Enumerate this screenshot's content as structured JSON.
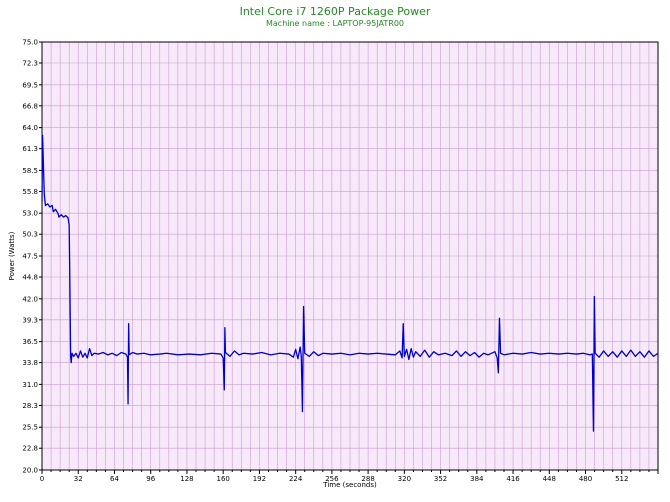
{
  "chart_data": {
    "type": "line",
    "title": "Intel Core i7 1260P Package Power",
    "subtitle": "Machine name : LAPTOP-95JATR00",
    "xlabel": "Time (seconds)",
    "ylabel": "Power (Watts)",
    "xlim": [
      0,
      544
    ],
    "ylim": [
      20.0,
      75.0
    ],
    "x_ticks": [
      "0",
      "32",
      "64",
      "96",
      "128",
      "160",
      "192",
      "224",
      "256",
      "288",
      "320",
      "352",
      "384",
      "416",
      "448",
      "480",
      "512"
    ],
    "y_ticks": [
      "20.0",
      "22.8",
      "25.5",
      "28.3",
      "31.0",
      "33.8",
      "36.5",
      "39.3",
      "42.0",
      "44.8",
      "47.5",
      "50.3",
      "53.0",
      "55.8",
      "58.5",
      "61.3",
      "64.0",
      "66.8",
      "69.5",
      "72.3",
      "75.0"
    ],
    "grid": true,
    "background_color": "#F7E8FA",
    "grid_color": "#C9A0D0",
    "line_color": "#0000CC",
    "title_color": "#228B22",
    "series": [
      {
        "points": [
          [
            0,
            54.5
          ],
          [
            0.5,
            63.0
          ],
          [
            1.2,
            59.5
          ],
          [
            2,
            55.5
          ],
          [
            3,
            54.0
          ],
          [
            5,
            54.2
          ],
          [
            7,
            53.8
          ],
          [
            9,
            54.0
          ],
          [
            10,
            53.2
          ],
          [
            12,
            53.5
          ],
          [
            14,
            53.0
          ],
          [
            15,
            52.5
          ],
          [
            17,
            52.8
          ],
          [
            19,
            52.5
          ],
          [
            21,
            52.7
          ],
          [
            23,
            52.4
          ],
          [
            24,
            51.5
          ],
          [
            24.5,
            45.5
          ],
          [
            25.3,
            34.5
          ],
          [
            25.8,
            33.8
          ],
          [
            26.5,
            35.0
          ],
          [
            28,
            34.6
          ],
          [
            30,
            35.0
          ],
          [
            32,
            34.4
          ],
          [
            34,
            35.3
          ],
          [
            36,
            34.5
          ],
          [
            38,
            35.0
          ],
          [
            40,
            34.4
          ],
          [
            42,
            35.6
          ],
          [
            44,
            34.7
          ],
          [
            46,
            35.0
          ],
          [
            50,
            34.9
          ],
          [
            54,
            35.1
          ],
          [
            58,
            34.8
          ],
          [
            62,
            35.0
          ],
          [
            66,
            34.7
          ],
          [
            70,
            35.1
          ],
          [
            74,
            34.9
          ],
          [
            75.5,
            34.5
          ],
          [
            76,
            28.5
          ],
          [
            76.5,
            38.8
          ],
          [
            77,
            34.8
          ],
          [
            80,
            35.1
          ],
          [
            84,
            34.9
          ],
          [
            90,
            35.0
          ],
          [
            96,
            34.8
          ],
          [
            104,
            34.9
          ],
          [
            110,
            35.0
          ],
          [
            120,
            34.8
          ],
          [
            130,
            34.9
          ],
          [
            140,
            34.8
          ],
          [
            150,
            35.0
          ],
          [
            158,
            34.9
          ],
          [
            160,
            34.4
          ],
          [
            161,
            30.3
          ],
          [
            161.5,
            38.3
          ],
          [
            162,
            35.1
          ],
          [
            166,
            34.6
          ],
          [
            170,
            35.3
          ],
          [
            174,
            34.8
          ],
          [
            178,
            35.0
          ],
          [
            186,
            34.9
          ],
          [
            194,
            35.1
          ],
          [
            202,
            34.8
          ],
          [
            210,
            35.0
          ],
          [
            218,
            34.9
          ],
          [
            222,
            34.5
          ],
          [
            224,
            35.5
          ],
          [
            226,
            34.3
          ],
          [
            228,
            35.8
          ],
          [
            229,
            34.6
          ],
          [
            230,
            27.5
          ],
          [
            231,
            41.0
          ],
          [
            232,
            35.0
          ],
          [
            236,
            34.6
          ],
          [
            240,
            35.2
          ],
          [
            244,
            34.7
          ],
          [
            248,
            35.0
          ],
          [
            256,
            34.9
          ],
          [
            264,
            35.0
          ],
          [
            272,
            34.8
          ],
          [
            280,
            35.0
          ],
          [
            288,
            34.9
          ],
          [
            296,
            35.0
          ],
          [
            304,
            34.9
          ],
          [
            312,
            34.8
          ],
          [
            316,
            35.3
          ],
          [
            318,
            34.4
          ],
          [
            319,
            38.8
          ],
          [
            320,
            34.6
          ],
          [
            322,
            35.5
          ],
          [
            324,
            34.2
          ],
          [
            326,
            35.6
          ],
          [
            328,
            34.5
          ],
          [
            330,
            35.2
          ],
          [
            334,
            34.6
          ],
          [
            338,
            35.4
          ],
          [
            342,
            34.5
          ],
          [
            346,
            35.2
          ],
          [
            350,
            34.8
          ],
          [
            356,
            35.0
          ],
          [
            362,
            34.7
          ],
          [
            366,
            35.3
          ],
          [
            370,
            34.6
          ],
          [
            374,
            35.2
          ],
          [
            378,
            34.7
          ],
          [
            382,
            35.1
          ],
          [
            386,
            34.5
          ],
          [
            390,
            35.0
          ],
          [
            394,
            34.8
          ],
          [
            400,
            35.2
          ],
          [
            402,
            34.4
          ],
          [
            403,
            32.5
          ],
          [
            404,
            39.5
          ],
          [
            405,
            35.0
          ],
          [
            408,
            34.8
          ],
          [
            416,
            35.0
          ],
          [
            424,
            34.9
          ],
          [
            432,
            35.1
          ],
          [
            440,
            34.9
          ],
          [
            448,
            35.0
          ],
          [
            456,
            34.9
          ],
          [
            464,
            35.0
          ],
          [
            472,
            34.9
          ],
          [
            478,
            35.0
          ],
          [
            484,
            34.8
          ],
          [
            486,
            34.9
          ],
          [
            487,
            25.0
          ],
          [
            487.8,
            42.3
          ],
          [
            488.5,
            35.0
          ],
          [
            492,
            34.5
          ],
          [
            496,
            35.3
          ],
          [
            500,
            34.6
          ],
          [
            504,
            35.2
          ],
          [
            508,
            34.5
          ],
          [
            512,
            35.3
          ],
          [
            516,
            34.6
          ],
          [
            520,
            35.4
          ],
          [
            524,
            34.6
          ],
          [
            528,
            35.2
          ],
          [
            532,
            34.5
          ],
          [
            536,
            35.3
          ],
          [
            540,
            34.6
          ],
          [
            544,
            35.0
          ]
        ]
      }
    ]
  }
}
